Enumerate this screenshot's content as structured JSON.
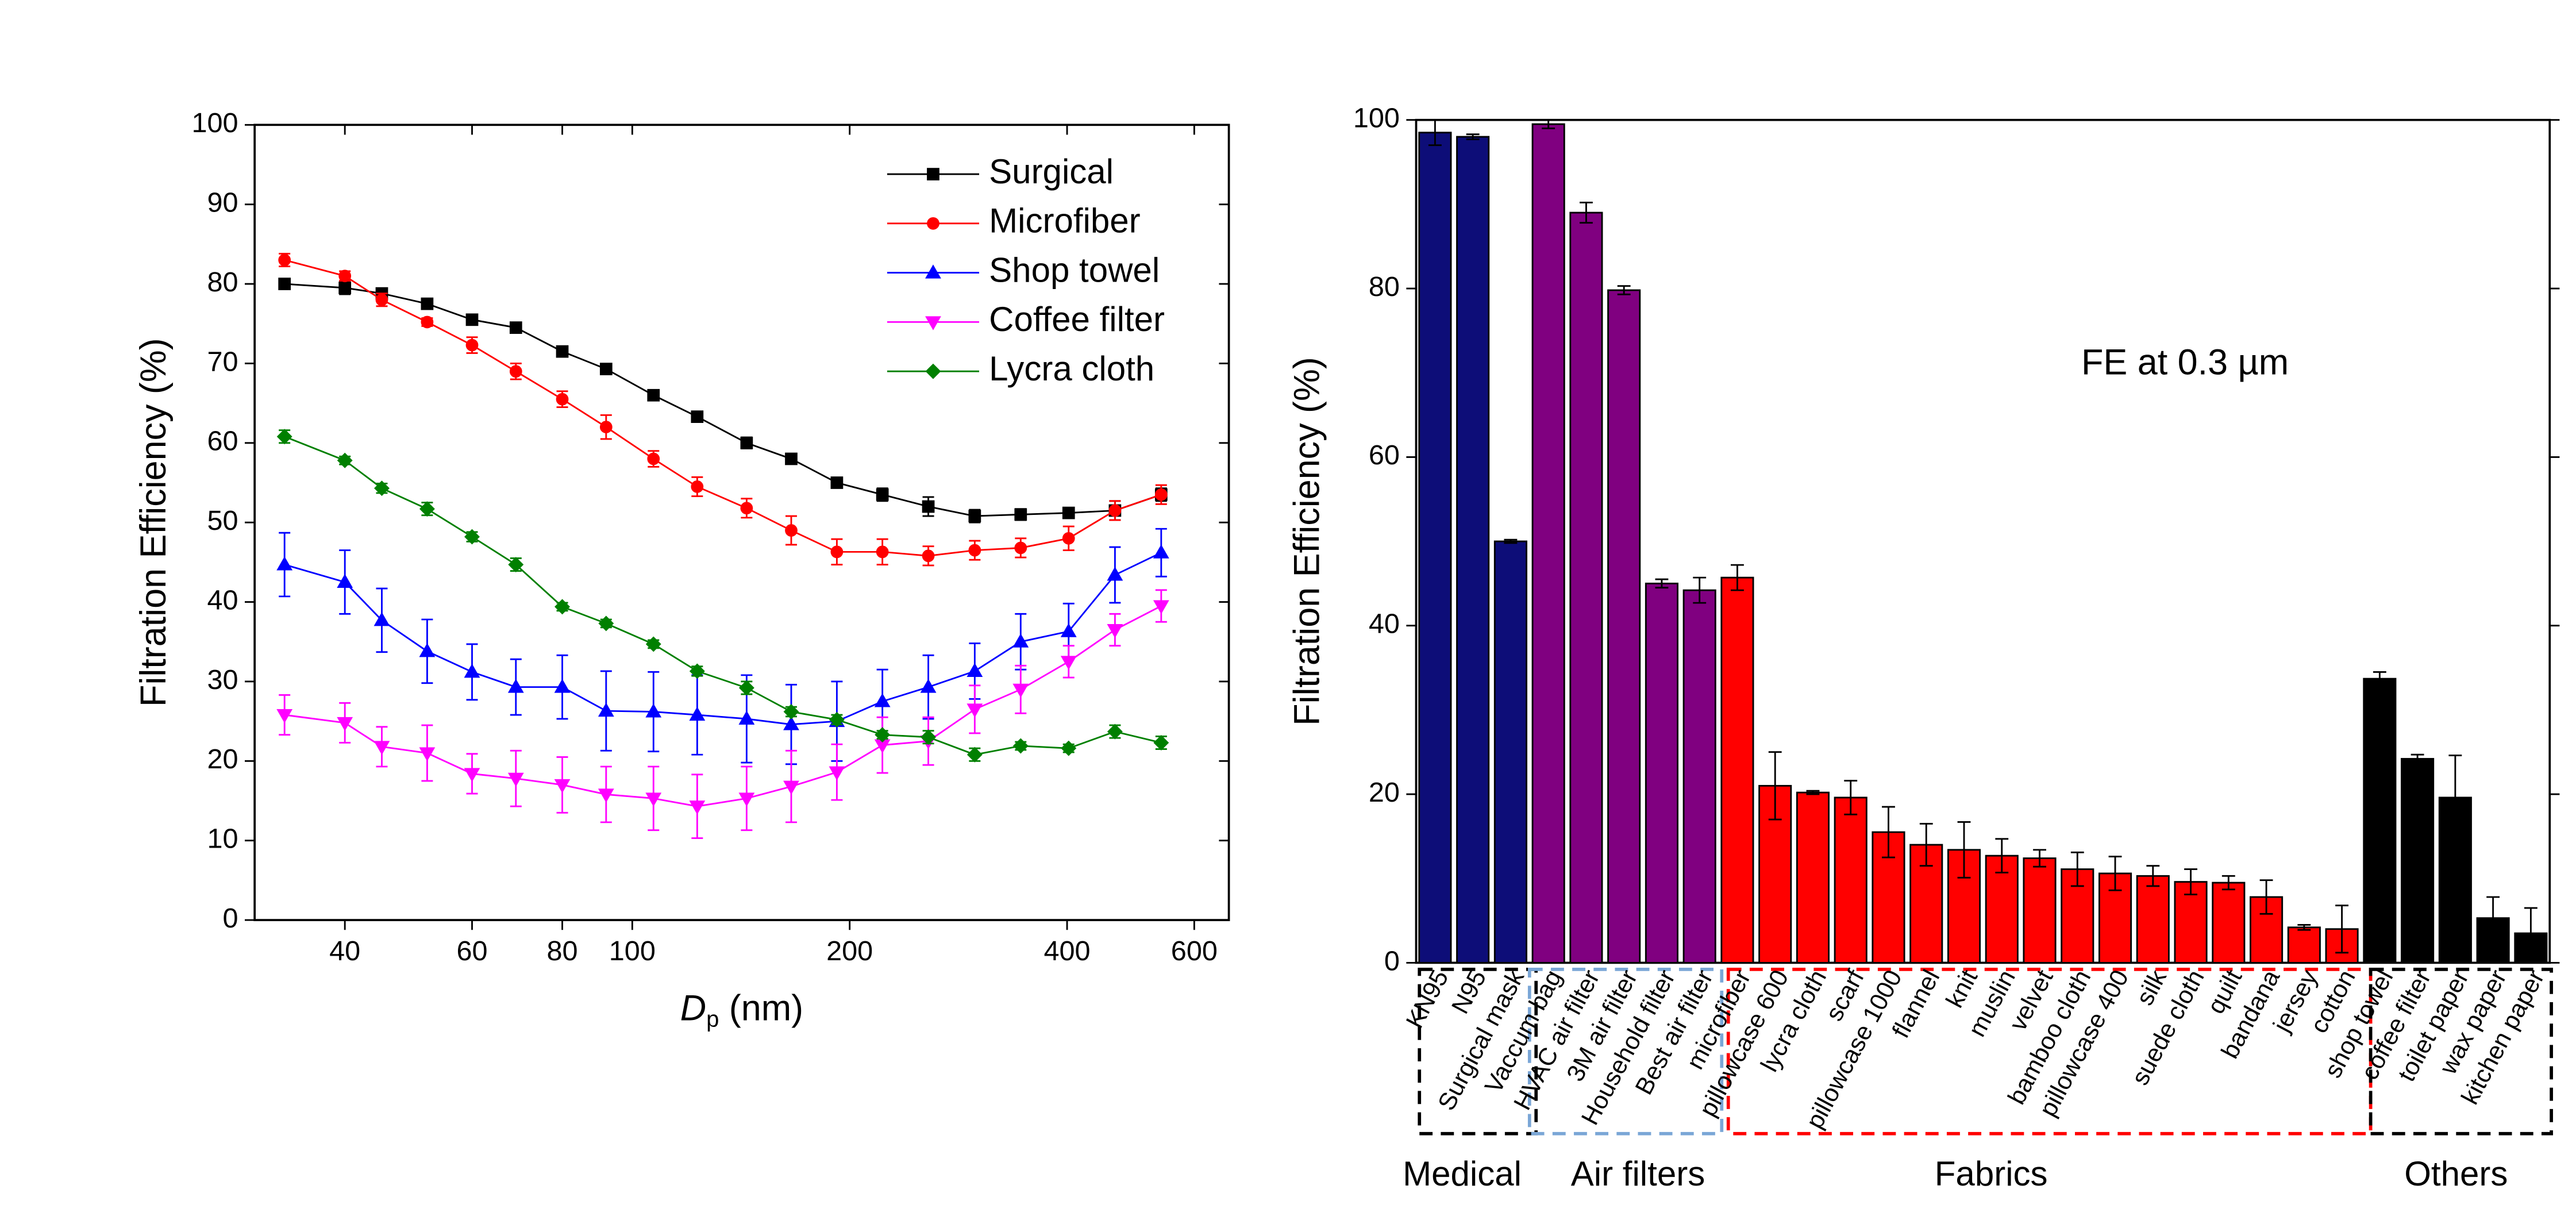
{
  "chart_data": [
    {
      "type": "line",
      "y_label": "Filtration Efficiency (%)",
      "x_label": {
        "symbol": "D",
        "subscript": "p",
        "unit": "(nm)"
      },
      "xscale": "log",
      "xlim": [
        30,
        670
      ],
      "xticks": [
        40,
        60,
        80,
        100,
        200,
        400,
        600
      ],
      "ylim": [
        0,
        100
      ],
      "yticks": [
        0,
        10,
        20,
        30,
        40,
        50,
        60,
        70,
        80,
        90,
        100
      ],
      "legend": "top-right",
      "x": [
        33,
        40,
        45,
        52,
        60,
        69,
        80,
        92,
        107,
        123,
        144,
        166,
        192,
        222,
        257,
        298,
        345,
        402,
        466,
        540
      ],
      "series": [
        {
          "name": "Surgical",
          "color": "#000000",
          "marker": "square",
          "values": [
            80,
            79.5,
            78.8,
            77.5,
            75.5,
            74.5,
            71.5,
            69.3,
            66,
            63.3,
            60,
            58,
            55,
            53.5,
            52,
            50.8,
            51,
            51.2,
            51.5,
            53.5
          ],
          "errors": [
            0.5,
            0.8,
            0.5,
            0.5,
            0.6,
            0.5,
            0.4,
            0.5,
            0.4,
            0.6,
            0.7,
            0.5,
            0.6,
            0.8,
            1.2,
            0.8,
            0.7,
            0.5,
            1.2,
            0.8
          ]
        },
        {
          "name": "Microfiber",
          "color": "#ff0000",
          "marker": "circle",
          "values": [
            83,
            81,
            78,
            75.2,
            72.3,
            69,
            65.5,
            62,
            58,
            54.5,
            51.8,
            49,
            46.3,
            46.3,
            45.8,
            46.5,
            46.8,
            48,
            51.5,
            53.5
          ],
          "errors": [
            0.8,
            0.6,
            0.8,
            0.5,
            1,
            1,
            1,
            1.5,
            1,
            1.2,
            1.2,
            1.8,
            1.6,
            1.6,
            1.2,
            1.2,
            1.2,
            1.5,
            1.2,
            1.2
          ]
        },
        {
          "name": "Shop towel",
          "color": "#0000ff",
          "marker": "triangle-up",
          "values": [
            44.7,
            42.5,
            37.7,
            33.8,
            31.2,
            29.3,
            29.3,
            26.3,
            26.2,
            25.8,
            25.3,
            24.6,
            25,
            27.5,
            29.3,
            31.3,
            35,
            36.3,
            43.4,
            46.2
          ],
          "errors": [
            4,
            4,
            4,
            4,
            3.5,
            3.5,
            4,
            5,
            5,
            5,
            5.5,
            5,
            5,
            4,
            4,
            3.5,
            3.5,
            3.5,
            3.5,
            3
          ]
        },
        {
          "name": "Coffee filter",
          "color": "#ff00ff",
          "marker": "triangle-down",
          "values": [
            25.8,
            24.8,
            21.8,
            21,
            18.4,
            17.8,
            17,
            15.8,
            15.3,
            14.3,
            15.3,
            16.8,
            18.6,
            22,
            22.5,
            26.5,
            29,
            32.5,
            36.5,
            39.5
          ],
          "errors": [
            2.5,
            2.5,
            2.5,
            3.5,
            2.5,
            3.5,
            3.5,
            3.5,
            4,
            4,
            4,
            4.5,
            3.5,
            3.5,
            3,
            3,
            3,
            2,
            2,
            2
          ]
        },
        {
          "name": "Lycra cloth",
          "color": "#008000",
          "marker": "diamond",
          "values": [
            60.8,
            57.8,
            54.3,
            51.7,
            48.2,
            44.7,
            39.4,
            37.3,
            34.7,
            31.3,
            29.2,
            26.2,
            25.2,
            23.3,
            23,
            20.8,
            21.9,
            21.6,
            23.7,
            22.3
          ],
          "errors": [
            0.8,
            0.5,
            0.6,
            0.8,
            0.6,
            0.8,
            0.5,
            0.5,
            0.5,
            0.6,
            0.8,
            0.6,
            0.6,
            0.5,
            0.8,
            0.8,
            0.5,
            0.5,
            0.8,
            0.8
          ]
        }
      ]
    },
    {
      "type": "bar",
      "y_label": "Filtration Efficiency (%)",
      "annotation": "FE at 0.3 µm",
      "ylim": [
        0,
        100
      ],
      "yticks": [
        0,
        20,
        40,
        60,
        80,
        100
      ],
      "categories": [
        "KN95",
        "N95",
        "Surgical mask",
        "Vaccum bag",
        "HVAC air filter",
        "3M air filter",
        "Household  filter",
        "Best air filter",
        "microfiber",
        "pillowcase 600",
        "lycra cloth",
        "scarf",
        "pillowcase 1000",
        "flannel",
        "knit",
        "muslin",
        "velvet",
        "bamboo cloth",
        "pillowcase 400",
        "silk",
        "suede cloth",
        "quilt",
        "bandana",
        "jersey",
        "cotton",
        "shop towel",
        "coffee filter",
        "toilet paper",
        "wax paper",
        "kitchen paper"
      ],
      "values": [
        98.5,
        98,
        50,
        99.5,
        89,
        79.8,
        45,
        44.2,
        45.7,
        21,
        20.2,
        19.6,
        15.5,
        14,
        13.4,
        12.7,
        12.4,
        11.1,
        10.6,
        10.3,
        9.6,
        9.5,
        7.8,
        4.2,
        4,
        33.7,
        24.2,
        19.6,
        5.3,
        3.5
      ],
      "errors": [
        1.5,
        0.3,
        0.2,
        0.5,
        1.2,
        0.5,
        0.5,
        1.5,
        1.5,
        4,
        0.2,
        2,
        3,
        2.5,
        3.3,
        2,
        1,
        2,
        2,
        1.2,
        1.5,
        0.8,
        2,
        0.3,
        2.8,
        0.8,
        0.5,
        5,
        2.5,
        3
      ],
      "colors": [
        "#0d0d78",
        "#0d0d78",
        "#0d0d78",
        "#800080",
        "#800080",
        "#800080",
        "#800080",
        "#800080",
        "#ff0000",
        "#ff0000",
        "#ff0000",
        "#ff0000",
        "#ff0000",
        "#ff0000",
        "#ff0000",
        "#ff0000",
        "#ff0000",
        "#ff0000",
        "#ff0000",
        "#ff0000",
        "#ff0000",
        "#ff0000",
        "#ff0000",
        "#ff0000",
        "#ff0000",
        "#000000",
        "#000000",
        "#000000",
        "#000000",
        "#000000"
      ],
      "groups": [
        {
          "label": "Medical",
          "color": "#1a2a6c"
        },
        {
          "label": "Air filters",
          "color": "#7a2a9a"
        },
        {
          "label": "Fabrics",
          "color": "#ff0000"
        },
        {
          "label": "Others",
          "color": "#000000"
        }
      ]
    }
  ]
}
